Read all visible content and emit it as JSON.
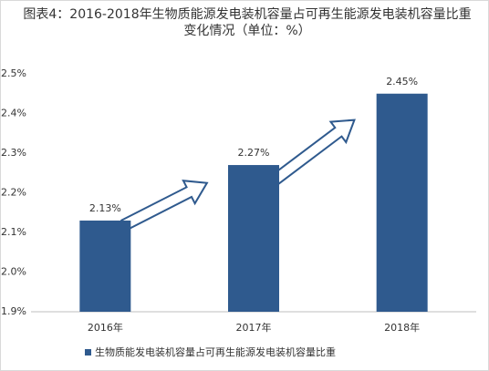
{
  "chart_data": {
    "type": "bar",
    "title": "图表4：2016-2018年生物质能源发电装机容量占可再生能源发电装机容量比重变化情况（单位：%）",
    "categories": [
      "2016年",
      "2017年",
      "2018年"
    ],
    "series": [
      {
        "name": "生物质能发电装机容量占可再生能源发电装机容量比重",
        "color": "#2f5a8e",
        "values": [
          2.13,
          2.27,
          2.45
        ],
        "value_labels": [
          "2.13%",
          "2.27%",
          "2.45%"
        ]
      }
    ],
    "ylim": [
      1.9,
      2.5
    ],
    "yticks": [
      {
        "value": 1.9,
        "label": "1.9%"
      },
      {
        "value": 2.0,
        "label": "2.0%"
      },
      {
        "value": 2.1,
        "label": "2.1%"
      },
      {
        "value": 2.2,
        "label": "2.2%"
      },
      {
        "value": 2.3,
        "label": "2.3%"
      },
      {
        "value": 2.4,
        "label": "2.4%"
      },
      {
        "value": 2.5,
        "label": "2.5%"
      }
    ],
    "grid": false
  }
}
